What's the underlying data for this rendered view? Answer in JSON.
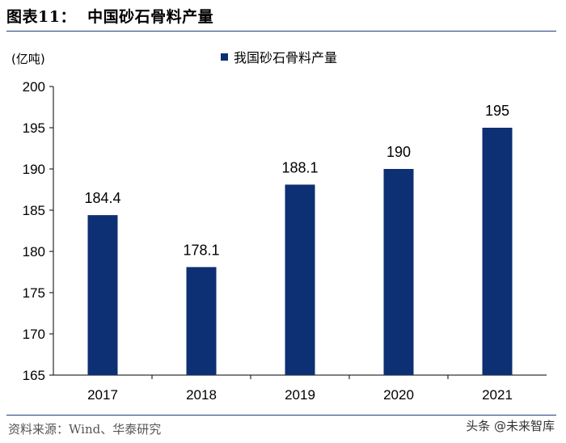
{
  "header": {
    "title": "图表11：  中国砂石骨料产量"
  },
  "footer": {
    "source": "资料来源：Wind、华泰研究",
    "watermark": "头条 @未来智库"
  },
  "colors": {
    "bar": "#0d2f73",
    "rule": "#1f3e7a"
  },
  "chart_data": {
    "type": "bar",
    "title": "",
    "unit_label": "(亿吨)",
    "categories": [
      "2017",
      "2018",
      "2019",
      "2020",
      "2021"
    ],
    "series": [
      {
        "name": "我国砂石骨料产量",
        "values": [
          184.4,
          178.1,
          188.1,
          190,
          195
        ]
      }
    ],
    "data_labels": [
      "184.4",
      "178.1",
      "188.1",
      "190",
      "195"
    ],
    "yticks": [
      165,
      170,
      175,
      180,
      185,
      190,
      195,
      200
    ],
    "ylim": [
      165,
      200
    ],
    "grid": false,
    "legend_position": "top-center"
  }
}
